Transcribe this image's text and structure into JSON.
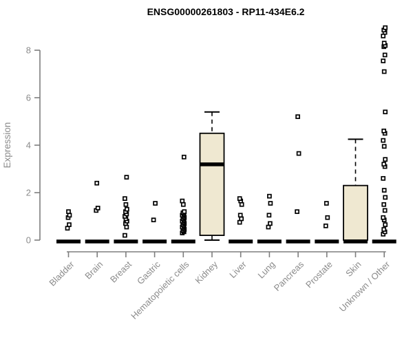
{
  "chart_data": {
    "type": "boxplot",
    "title": "ENSG00000261803 - RP11-434E6.2",
    "ylabel": "Expression",
    "xlabel": "",
    "ylim": [
      0,
      9
    ],
    "yticks": [
      0,
      2,
      4,
      6,
      8
    ],
    "grid": false,
    "legend": false,
    "colors": {
      "box_fill": "#EFE8D1",
      "box_border": "#000000",
      "median": "#000000",
      "outlier_stroke": "#000000",
      "outlier_fill": "#ffffff",
      "axis_line": "#7d7d7d",
      "tick_label": "#8b8b8b",
      "title": "#000000",
      "background": "#ffffff"
    },
    "categories": [
      "Bladder",
      "Brain",
      "Breast",
      "Gastric",
      "Hematopoietic cells",
      "Kidney",
      "Liver",
      "Lung",
      "Pancreas",
      "Prostate",
      "Skin",
      "Unknown / Other"
    ],
    "boxes": [
      {
        "category": "Bladder",
        "q1": 0,
        "median": 0,
        "q3": 0,
        "whisker_low": 0,
        "whisker_high": 0,
        "outliers": [
          0.5,
          0.65,
          0.95,
          1.05,
          1.2
        ]
      },
      {
        "category": "Brain",
        "q1": 0,
        "median": 0,
        "q3": 0,
        "whisker_low": 0,
        "whisker_high": 0,
        "outliers": [
          1.25,
          1.35,
          2.4
        ]
      },
      {
        "category": "Breast",
        "q1": 0,
        "median": 0,
        "q3": 0,
        "whisker_low": 0,
        "whisker_high": 0,
        "outliers": [
          0.2,
          0.55,
          0.7,
          0.8,
          0.9,
          1.0,
          1.1,
          1.2,
          1.3,
          1.5,
          1.75,
          2.65
        ]
      },
      {
        "category": "Gastric",
        "q1": 0,
        "median": 0,
        "q3": 0,
        "whisker_low": 0,
        "whisker_high": 0,
        "outliers": [
          0.85,
          1.55
        ]
      },
      {
        "category": "Hematopoietic cells",
        "q1": 0,
        "median": 0,
        "q3": 0,
        "whisker_low": 0,
        "whisker_high": 0,
        "outliers": [
          0.3,
          0.35,
          0.4,
          0.45,
          0.5,
          0.55,
          0.6,
          0.65,
          0.7,
          0.75,
          0.8,
          0.85,
          0.9,
          0.95,
          1.0,
          1.05,
          1.1,
          1.15,
          1.2,
          1.5,
          1.65,
          3.5
        ]
      },
      {
        "category": "Kidney",
        "q1": 0.2,
        "median": 3.25,
        "q3": 4.5,
        "whisker_low": 0,
        "whisker_high": 5.4,
        "outliers": []
      },
      {
        "category": "Liver",
        "q1": 0,
        "median": 0,
        "q3": 0,
        "whisker_low": 0,
        "whisker_high": 0,
        "outliers": [
          0.75,
          0.9,
          1.05,
          1.5,
          1.65,
          1.75
        ]
      },
      {
        "category": "Lung",
        "q1": 0,
        "median": 0,
        "q3": 0,
        "whisker_low": 0,
        "whisker_high": 0,
        "outliers": [
          0.55,
          0.7,
          1.05,
          1.55,
          1.85
        ]
      },
      {
        "category": "Pancreas",
        "q1": 0,
        "median": 0,
        "q3": 0,
        "whisker_low": 0,
        "whisker_high": 0,
        "outliers": [
          1.2,
          3.65,
          5.2
        ]
      },
      {
        "category": "Prostate",
        "q1": 0,
        "median": 0,
        "q3": 0,
        "whisker_low": 0,
        "whisker_high": 0,
        "outliers": [
          0.6,
          0.95,
          1.55
        ]
      },
      {
        "category": "Skin",
        "q1": 0,
        "median": 0,
        "q3": 2.3,
        "whisker_low": 0,
        "whisker_high": 4.25,
        "outliers": []
      },
      {
        "category": "Unknown / Other",
        "q1": 0,
        "median": 0,
        "q3": 0,
        "whisker_low": 0,
        "whisker_high": 0,
        "outliers": [
          0.25,
          0.35,
          0.45,
          0.65,
          0.85,
          0.95,
          1.25,
          1.5,
          1.8,
          2.1,
          2.6,
          3.1,
          3.2,
          3.4,
          3.95,
          4.2,
          4.5,
          4.6,
          5.4,
          7.1,
          7.55,
          7.8,
          8.15,
          8.2,
          8.3,
          8.6,
          8.75,
          8.85,
          8.95
        ]
      }
    ]
  }
}
